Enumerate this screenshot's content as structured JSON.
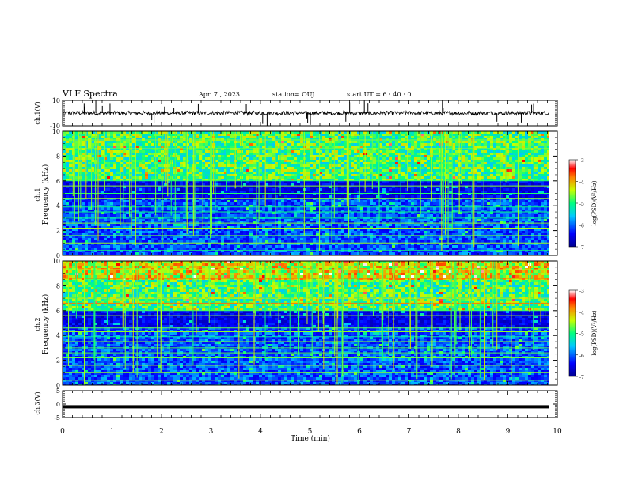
{
  "header": {
    "title": "VLF Spectra",
    "date": "Apr. 7 , 2023",
    "station": "station= OUJ",
    "start": "start  UT =   6  : 40 : 0"
  },
  "chart_data": [
    {
      "type": "line",
      "id": "ch1-waveform",
      "ylabel": "ch.1(V)",
      "ylim": [
        -10,
        10
      ],
      "yticks": [
        "10",
        "-10"
      ],
      "baseline": 0
    },
    {
      "type": "heatmap",
      "id": "ch1-spectrogram",
      "ylabel": "ch.1\nFrequency (kHz)",
      "ylabel_line1": "ch.1",
      "ylabel_line2": "Frequency  (kHz)",
      "ylim": [
        0,
        10
      ],
      "yticks": [
        "0",
        "2",
        "4",
        "6",
        "8",
        "10"
      ],
      "colorbar": {
        "label": "log(PSD)(V²/Hz)",
        "range": [
          -7,
          -3
        ],
        "ticks": [
          "-3",
          "-4",
          "-5",
          "-6",
          "-7"
        ]
      },
      "tones_khz": [
        0.4,
        1.0,
        1.6,
        2.2,
        2.6,
        3.0,
        3.5,
        3.9,
        4.3,
        4.6,
        5.0,
        5.6,
        6.0,
        8.6,
        9.3
      ]
    },
    {
      "type": "heatmap",
      "id": "ch2-spectrogram",
      "ylabel": "ch.2\nFrequency (kHz)",
      "ylabel_line1": "ch.2",
      "ylabel_line2": "Frequency  (kHz)",
      "ylim": [
        0,
        10
      ],
      "yticks": [
        "0",
        "2",
        "4",
        "6",
        "8",
        "10"
      ],
      "colorbar": {
        "label": "log(PSD)(V²/Hz)",
        "range": [
          -7,
          -3
        ],
        "ticks": [
          "-3",
          "-4",
          "-5",
          "-6",
          "-7"
        ]
      },
      "tones_khz": [
        0.4,
        1.0,
        1.6,
        2.2,
        2.6,
        3.0,
        3.5,
        3.9,
        4.3,
        4.6,
        5.0,
        5.6,
        6.0,
        6.6,
        7.0,
        8.6,
        9.3
      ]
    },
    {
      "type": "line",
      "id": "ch3-waveform",
      "ylabel": "ch.3(V)",
      "ylim": [
        -5,
        5
      ],
      "yticks": [
        "5",
        "0",
        "-5"
      ],
      "baseline": -1
    }
  ],
  "xaxis": {
    "label": "Time  (min)",
    "range": [
      0,
      10
    ],
    "ticks": [
      "0",
      "1",
      "2",
      "3",
      "4",
      "5",
      "6",
      "7",
      "8",
      "9",
      "10"
    ],
    "data_end_min": 9.83
  }
}
